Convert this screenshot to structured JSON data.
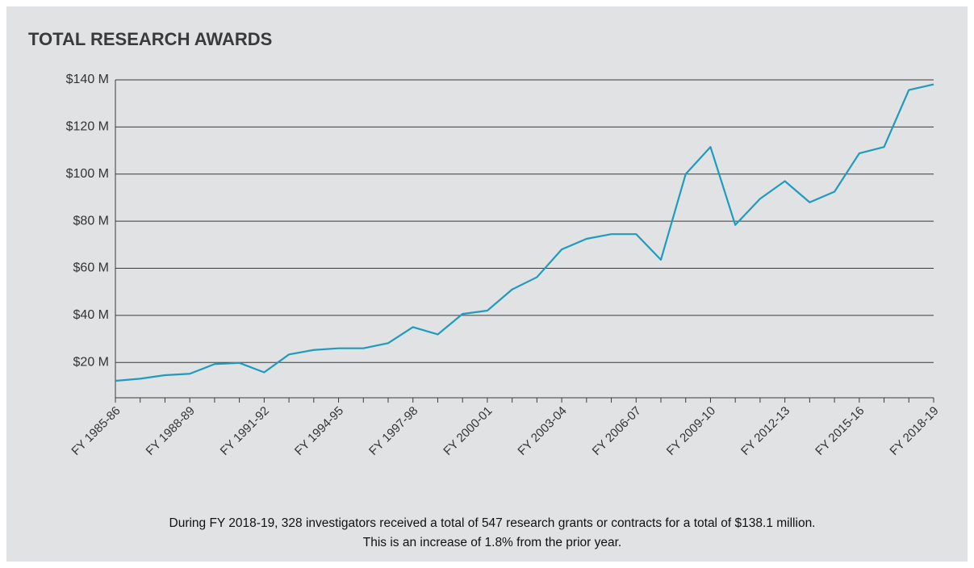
{
  "chart_data": {
    "type": "line",
    "title": "TOTAL RESEARCH AWARDS",
    "categories": [
      "FY 1985-86",
      null,
      null,
      "FY 1988-89",
      null,
      null,
      "FY 1991-92",
      null,
      null,
      "FY 1994-95",
      null,
      null,
      "FY 1997-98",
      null,
      null,
      "FY 2000-01",
      null,
      null,
      "FY 2003-04",
      null,
      null,
      "FY 2006-07",
      null,
      null,
      "FY 2009-10",
      null,
      null,
      "FY 2012-13",
      null,
      null,
      "FY 2015-16",
      null,
      null,
      "FY 2018-19"
    ],
    "series": [
      {
        "color": "#1f9bbf",
        "values": [
          12.2,
          13.1,
          14.6,
          15.2,
          19.3,
          19.8,
          15.8,
          23.4,
          25.3,
          26,
          26,
          28.2,
          35,
          31.9,
          40.6,
          42,
          51,
          56.2,
          68,
          72.5,
          74.5,
          74.5,
          63.6,
          100,
          111.5,
          78.4,
          89.5,
          97,
          88,
          92.5,
          108.8,
          111.5,
          135.7,
          138.1
        ]
      }
    ],
    "ylim": [
      5,
      140
    ],
    "yticks": [
      {
        "value": 20,
        "label": "$20 M"
      },
      {
        "value": 40,
        "label": "$40 M"
      },
      {
        "value": 60,
        "label": "$60 M"
      },
      {
        "value": 80,
        "label": "$80 M"
      },
      {
        "value": 100,
        "label": "$100 M"
      },
      {
        "value": 120,
        "label": "$120 M"
      },
      {
        "value": 140,
        "label": "$140 M"
      }
    ],
    "grid": true,
    "caption": [
      "During FY 2018-19, 328 investigators received a total of 547 research grants or contracts for a total of $138.1 million.",
      "This is an increase of 1.8% from the prior year."
    ]
  }
}
